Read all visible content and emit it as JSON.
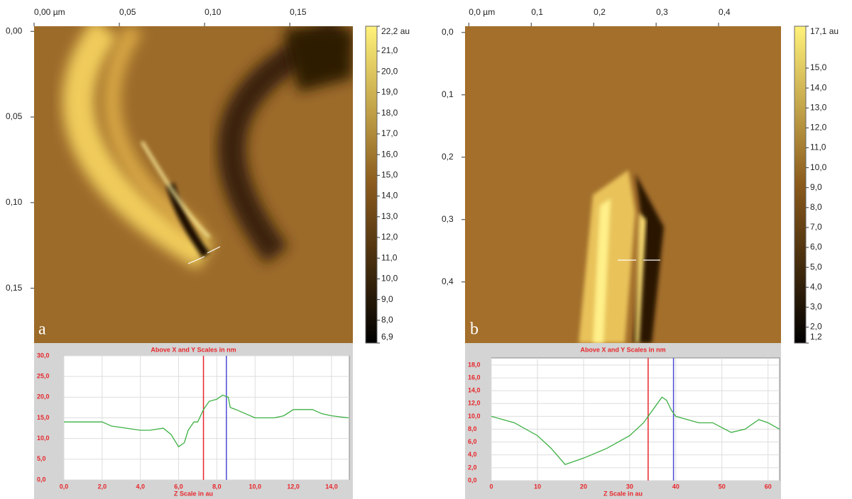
{
  "chart_data": [
    {
      "type": "image",
      "label": "a",
      "xlim": [
        0,
        0.187
      ],
      "ylim": [
        -0.003,
        0.182
      ],
      "xticks": [
        {
          "value": 0,
          "label": "0,00 µm"
        },
        {
          "value": 0.05,
          "label": "0,05"
        },
        {
          "value": 0.1,
          "label": "0,10"
        },
        {
          "value": 0.15,
          "label": "0,15"
        }
      ],
      "yticks": [
        {
          "value": 0,
          "label": "0,00"
        },
        {
          "value": 0.05,
          "label": "0,05"
        },
        {
          "value": 0.1,
          "label": "0,10"
        },
        {
          "value": 0.15,
          "label": "0,15"
        }
      ],
      "clim": [
        6.9,
        22.2
      ],
      "cticks": [
        {
          "value": 22.2,
          "label": "22,2 au"
        },
        {
          "value": 21,
          "label": "21,0"
        },
        {
          "value": 20,
          "label": "20,0"
        },
        {
          "value": 19,
          "label": "19,0"
        },
        {
          "value": 18,
          "label": "18,0"
        },
        {
          "value": 17,
          "label": "17,0"
        },
        {
          "value": 16,
          "label": "16,0"
        },
        {
          "value": 15,
          "label": "15,0"
        },
        {
          "value": 14,
          "label": "14,0"
        },
        {
          "value": 13,
          "label": "13,0"
        },
        {
          "value": 12,
          "label": "12,0"
        },
        {
          "value": 11,
          "label": "11,0"
        },
        {
          "value": 10,
          "label": "10,0"
        },
        {
          "value": 9,
          "label": "9,0"
        },
        {
          "value": 8,
          "label": "8,0"
        },
        {
          "value": 6.9,
          "label": "6,9"
        }
      ],
      "colormap": [
        "#000000",
        "#8a5a1c",
        "#fff27a"
      ]
    },
    {
      "type": "image",
      "label": "b",
      "xlim": [
        -0.006,
        0.5
      ],
      "ylim": [
        -0.01,
        0.498
      ],
      "xticks": [
        {
          "value": 0,
          "label": "0,0 µm"
        },
        {
          "value": 0.1,
          "label": "0,1"
        },
        {
          "value": 0.2,
          "label": "0,2"
        },
        {
          "value": 0.3,
          "label": "0,3"
        },
        {
          "value": 0.4,
          "label": "0,4"
        }
      ],
      "yticks": [
        {
          "value": 0,
          "label": "0,0"
        },
        {
          "value": 0.1,
          "label": "0,1"
        },
        {
          "value": 0.2,
          "label": "0,2"
        },
        {
          "value": 0.3,
          "label": "0,3"
        },
        {
          "value": 0.4,
          "label": "0,4"
        }
      ],
      "clim": [
        1.2,
        17.1
      ],
      "cticks": [
        {
          "value": 17.1,
          "label": "17,1 au"
        },
        {
          "value": 15,
          "label": "15,0"
        },
        {
          "value": 14,
          "label": "14,0"
        },
        {
          "value": 13,
          "label": "13,0"
        },
        {
          "value": 12,
          "label": "12,0"
        },
        {
          "value": 11,
          "label": "11,0"
        },
        {
          "value": 10,
          "label": "10,0"
        },
        {
          "value": 9,
          "label": "9,0"
        },
        {
          "value": 8,
          "label": "8,0"
        },
        {
          "value": 7,
          "label": "7,0"
        },
        {
          "value": 6,
          "label": "6,0"
        },
        {
          "value": 5,
          "label": "5,0"
        },
        {
          "value": 4,
          "label": "4,0"
        },
        {
          "value": 3,
          "label": "3,0"
        },
        {
          "value": 2,
          "label": "2,0"
        },
        {
          "value": 1.2,
          "label": "1,2"
        }
      ],
      "colormap": [
        "#000000",
        "#8a5a1c",
        "#fff27a"
      ]
    },
    {
      "type": "line",
      "title": "Above X and Y Scales in nm",
      "x_label": "Z Scale in au",
      "xlim": [
        0,
        14.93
      ],
      "ylim": [
        0,
        30
      ],
      "xticks": [
        {
          "value": 0,
          "label": "0,0"
        },
        {
          "value": 2,
          "label": "2,0"
        },
        {
          "value": 4,
          "label": "4,0"
        },
        {
          "value": 6,
          "label": "6,0"
        },
        {
          "value": 8,
          "label": "8,0"
        },
        {
          "value": 10,
          "label": "10,0"
        },
        {
          "value": 12,
          "label": "12,0"
        },
        {
          "value": 14,
          "label": "14,0"
        }
      ],
      "yticks": [
        {
          "value": 0,
          "label": "0,0"
        },
        {
          "value": 5,
          "label": "5,0"
        },
        {
          "value": 10,
          "label": "10,0"
        },
        {
          "value": 15,
          "label": "15,0"
        },
        {
          "value": 20,
          "label": "20,0"
        },
        {
          "value": 25,
          "label": "25,0"
        },
        {
          "value": 30,
          "label": "30,0"
        }
      ],
      "grid": true,
      "x": [
        0,
        2,
        2.5,
        4,
        4.5,
        5.2,
        5.6,
        6,
        6.3,
        6.5,
        6.8,
        7,
        7.3,
        7.6,
        8,
        8.3,
        8.6,
        8.7,
        9,
        9.5,
        10,
        11,
        11.5,
        12,
        13,
        13.5,
        14,
        14.9
      ],
      "series": [
        {
          "color": "#3cb043",
          "values": [
            14,
            14,
            13,
            12,
            12,
            12.5,
            11,
            8,
            9,
            12,
            14,
            14,
            17,
            19,
            19.5,
            20.5,
            20,
            17.5,
            17,
            16,
            15,
            15,
            15.5,
            17,
            17,
            16,
            15.5,
            15
          ]
        }
      ],
      "cursors": [
        {
          "color": "#e8262b",
          "x": 7.3
        },
        {
          "color": "#4a4ad8",
          "x": 8.5
        }
      ]
    },
    {
      "type": "line",
      "title": "Above X and Y Scales in nm",
      "x_label": "Z Scale in au",
      "xlim": [
        0,
        62.5
      ],
      "ylim": [
        0,
        19.1
      ],
      "xticks": [
        0,
        10,
        20,
        30,
        40,
        50,
        60
      ],
      "yticks": [
        {
          "value": 0,
          "label": "0,0"
        },
        {
          "value": 2,
          "label": "2,0"
        },
        {
          "value": 4,
          "label": "4,0"
        },
        {
          "value": 6,
          "label": "6,0"
        },
        {
          "value": 8,
          "label": "8,0"
        },
        {
          "value": 10,
          "label": "10,0"
        },
        {
          "value": 12,
          "label": "12,0"
        },
        {
          "value": 14,
          "label": "14,0"
        },
        {
          "value": 16,
          "label": "16,0"
        },
        {
          "value": 18,
          "label": "18,0"
        }
      ],
      "grid": true,
      "x": [
        0,
        5,
        10,
        13,
        16,
        20,
        25,
        30,
        33,
        36,
        37,
        38,
        39,
        40,
        45,
        48,
        52,
        55,
        58,
        60,
        62.5
      ],
      "series": [
        {
          "color": "#3cb043",
          "values": [
            10,
            9,
            7,
            5,
            2.5,
            3.5,
            5,
            7,
            9,
            12,
            13,
            12.5,
            11,
            10,
            9,
            9,
            7.5,
            8,
            9.5,
            9,
            8
          ]
        }
      ],
      "cursors": [
        {
          "color": "#e8262b",
          "x": 34
        },
        {
          "color": "#4a4ad8",
          "x": 39.5
        }
      ]
    }
  ]
}
